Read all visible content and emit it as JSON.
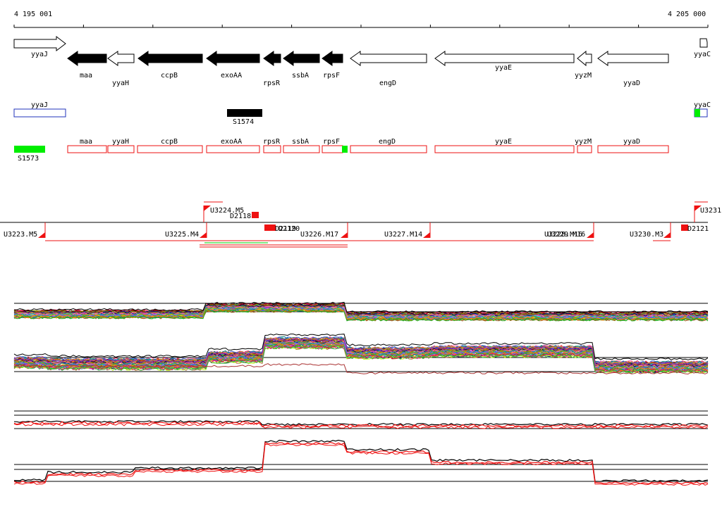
{
  "ruler": {
    "start_label": "4 195 001",
    "end_label": "4 205 000",
    "start": 4195001,
    "end": 4205000
  },
  "colors": {
    "stroke": "#000000",
    "gene_outline": "#000000",
    "gene_filled": "#000000",
    "blue": "#2233bb",
    "green": "#00ee00",
    "red": "#ee1111",
    "grid": "#000000"
  },
  "genes": [
    {
      "name": "yyaJ",
      "dir": "+",
      "filled": false
    },
    {
      "name": "maa",
      "dir": "-",
      "filled": true
    },
    {
      "name": "yyaH",
      "dir": "-",
      "filled": false
    },
    {
      "name": "ccpB",
      "dir": "-",
      "filled": true
    },
    {
      "name": "exoAA",
      "dir": "-",
      "filled": true
    },
    {
      "name": "rpsR",
      "dir": "-",
      "filled": true
    },
    {
      "name": "ssbA",
      "dir": "-",
      "filled": true
    },
    {
      "name": "rpsF",
      "dir": "-",
      "filled": true
    },
    {
      "name": "engD",
      "dir": "-",
      "filled": false
    },
    {
      "name": "yyaE",
      "dir": "-",
      "filled": false
    },
    {
      "name": "yyzM",
      "dir": "-",
      "filled": false
    },
    {
      "name": "yyaD",
      "dir": "-",
      "filled": false
    },
    {
      "name": "yyaC",
      "dir": "+",
      "filled": false
    }
  ],
  "blue_features": [
    {
      "name": "yyaJ"
    },
    {
      "name": "yyaC"
    }
  ],
  "black_features": [
    {
      "name": "S1574"
    }
  ],
  "green_features": [
    {
      "name": "S1573"
    }
  ],
  "red_features": [
    {
      "name": "maa"
    },
    {
      "name": "yyaH"
    },
    {
      "name": "ccpB"
    },
    {
      "name": "exoAA"
    },
    {
      "name": "rpsR"
    },
    {
      "name": "ssbA"
    },
    {
      "name": "rpsF"
    },
    {
      "name": "engD"
    },
    {
      "name": "yyaE"
    },
    {
      "name": "yyzM"
    },
    {
      "name": "yyaD"
    }
  ],
  "upstream_labels": [
    {
      "name": "U3224.M5"
    },
    {
      "name": "D2118"
    },
    {
      "name": "U3231"
    },
    {
      "name": "U3223.M5"
    },
    {
      "name": "U3225.M4"
    },
    {
      "name": "D2119"
    },
    {
      "name": "D2120"
    },
    {
      "name": "U3226.M17"
    },
    {
      "name": "U3227.M14"
    },
    {
      "name": "U3228.M16"
    },
    {
      "name": "U3229.M16"
    },
    {
      "name": "U3230.M3"
    },
    {
      "name": "D2121"
    }
  ]
}
